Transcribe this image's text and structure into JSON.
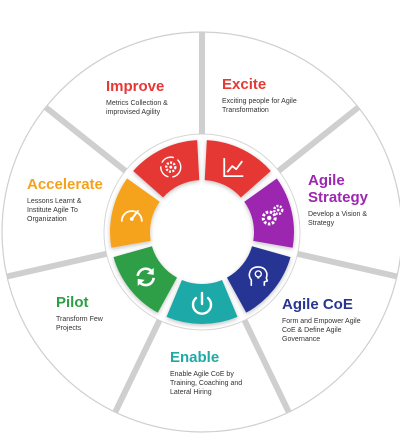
{
  "segments": [
    {
      "title": "Excite",
      "description": "Exciting people for Agile Transformation",
      "color": "#e53935",
      "icon": "trend-chart-icon"
    },
    {
      "title": "Agile Strategy",
      "description": "Develop a Vision & Strategy",
      "color": "#9c27b0",
      "icon": "gears-icon"
    },
    {
      "title": "Agile CoE",
      "description": "Form and Empower Agile CoE & Define Agile Governance",
      "color": "#283593",
      "icon": "head-idea-icon"
    },
    {
      "title": "Enable",
      "description": "Enable Agile CoE by Training, Coaching and Lateral Hiring",
      "color": "#1fa9a7",
      "icon": "power-icon"
    },
    {
      "title": "Pilot",
      "description": "Transform Few Projects",
      "color": "#2e9e46",
      "icon": "refresh-icon"
    },
    {
      "title": "Accelerate",
      "description": "Lessons Learnt & Institute Agile To Organization",
      "color": "#f5a21b",
      "icon": "gauge-icon"
    },
    {
      "title": "Improve",
      "description": "Metrics Collection & improvised Agility",
      "color": "#e53935",
      "icon": "cycle-gear-icon"
    }
  ]
}
